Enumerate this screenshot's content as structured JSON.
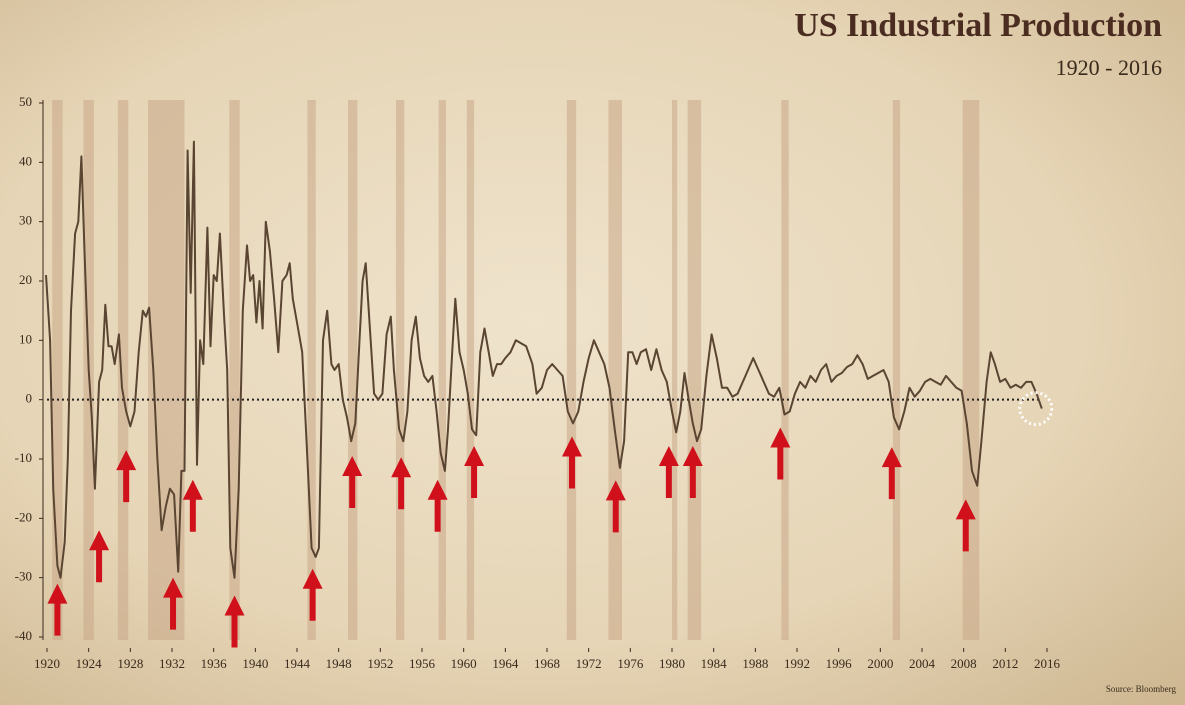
{
  "chart_data": {
    "type": "line",
    "title": "US Industrial Production",
    "subtitle": "1920 - 2016",
    "source": "Source: Bloomberg",
    "color": "#5a4532",
    "xlim": [
      1920,
      2016
    ],
    "xticks": [
      1920,
      1924,
      1928,
      1932,
      1936,
      1940,
      1944,
      1948,
      1952,
      1956,
      1960,
      1964,
      1968,
      1972,
      1976,
      1980,
      1984,
      1988,
      1992,
      1996,
      2000,
      2004,
      2008,
      2012,
      2016
    ],
    "ylim": [
      -40,
      50
    ],
    "yticks": [
      -40,
      -30,
      -20,
      -10,
      0,
      10,
      20,
      30,
      40,
      50
    ],
    "recessions": [
      [
        1920.5,
        1921.5
      ],
      [
        1923.5,
        1924.5
      ],
      [
        1926.8,
        1927.8
      ],
      [
        1929.7,
        1933.2
      ],
      [
        1937.5,
        1938.5
      ],
      [
        1945,
        1945.8
      ],
      [
        1948.9,
        1949.8
      ],
      [
        1953.5,
        1954.3
      ],
      [
        1957.6,
        1958.3
      ],
      [
        1960.3,
        1961
      ],
      [
        1969.9,
        1970.8
      ],
      [
        1973.9,
        1975.2
      ],
      [
        1980,
        1980.5
      ],
      [
        1981.5,
        1982.8
      ],
      [
        1990.5,
        1991.2
      ],
      [
        2001.2,
        2001.9
      ],
      [
        2007.9,
        2009.5
      ]
    ],
    "recession_color": "#c9a888",
    "arrow_color": "#d0101a",
    "arrows": [
      {
        "x": 1921,
        "y": -31
      },
      {
        "x": 1925,
        "y": -22
      },
      {
        "x": 1927.6,
        "y": -8.5
      },
      {
        "x": 1932.1,
        "y": -30
      },
      {
        "x": 1934,
        "y": -13.5
      },
      {
        "x": 1938,
        "y": -33
      },
      {
        "x": 1945.5,
        "y": -28.5
      },
      {
        "x": 1949.3,
        "y": -9.5
      },
      {
        "x": 1954,
        "y": -9.7
      },
      {
        "x": 1957.5,
        "y": -13.5
      },
      {
        "x": 1961,
        "y": -7.8
      },
      {
        "x": 1970.4,
        "y": -6.2
      },
      {
        "x": 1974.6,
        "y": -13.6
      },
      {
        "x": 1979.7,
        "y": -7.8
      },
      {
        "x": 1982,
        "y": -7.8
      },
      {
        "x": 1990.4,
        "y": -4.7
      },
      {
        "x": 2001.1,
        "y": -8
      },
      {
        "x": 2008.2,
        "y": -16.8
      }
    ],
    "highlight": {
      "x": 2015.5,
      "y": -1.5
    },
    "x": [
      1919.9,
      1920.3,
      1920.6,
      1921.0,
      1921.3,
      1921.7,
      1922.0,
      1922.3,
      1922.7,
      1923.0,
      1923.3,
      1923.6,
      1924.0,
      1924.3,
      1924.6,
      1925.0,
      1925.3,
      1925.6,
      1925.9,
      1926.2,
      1926.5,
      1926.9,
      1927.2,
      1927.6,
      1928.0,
      1928.4,
      1928.8,
      1929.2,
      1929.5,
      1929.8,
      1930.2,
      1930.6,
      1931.0,
      1931.4,
      1931.8,
      1932.2,
      1932.6,
      1932.9,
      1933.2,
      1933.5,
      1933.8,
      1934.1,
      1934.4,
      1934.7,
      1935.0,
      1935.4,
      1935.7,
      1936.0,
      1936.3,
      1936.6,
      1937.0,
      1937.3,
      1937.6,
      1938.0,
      1938.4,
      1938.8,
      1939.2,
      1939.5,
      1939.8,
      1940.1,
      1940.4,
      1940.7,
      1941.0,
      1941.4,
      1941.8,
      1942.2,
      1942.6,
      1943.0,
      1943.3,
      1943.6,
      1944.0,
      1944.5,
      1945.0,
      1945.4,
      1945.8,
      1946.1,
      1946.5,
      1946.9,
      1947.3,
      1947.6,
      1948.0,
      1948.4,
      1948.8,
      1949.2,
      1949.6,
      1950.0,
      1950.3,
      1950.6,
      1951.0,
      1951.4,
      1951.8,
      1952.2,
      1952.6,
      1953.0,
      1953.3,
      1953.8,
      1954.2,
      1954.6,
      1955.0,
      1955.4,
      1955.8,
      1956.2,
      1956.6,
      1957.0,
      1957.4,
      1957.8,
      1958.2,
      1958.5,
      1958.9,
      1959.2,
      1959.6,
      1960.0,
      1960.4,
      1960.8,
      1961.2,
      1961.6,
      1962.0,
      1962.4,
      1962.8,
      1963.2,
      1963.6,
      1964.0,
      1964.5,
      1965.0,
      1965.5,
      1966.0,
      1966.6,
      1967.0,
      1967.5,
      1968.0,
      1968.5,
      1969.0,
      1969.5,
      1970.0,
      1970.5,
      1971.0,
      1971.5,
      1972.0,
      1972.5,
      1973.0,
      1973.5,
      1974.0,
      1974.5,
      1975.0,
      1975.4,
      1975.8,
      1976.2,
      1976.6,
      1977.0,
      1977.5,
      1978.0,
      1978.5,
      1979.0,
      1979.5,
      1980.0,
      1980.4,
      1980.8,
      1981.2,
      1981.6,
      1982.0,
      1982.4,
      1982.8,
      1983.3,
      1983.8,
      1984.3,
      1984.8,
      1985.3,
      1985.8,
      1986.3,
      1986.8,
      1987.3,
      1987.8,
      1988.3,
      1988.8,
      1989.3,
      1989.8,
      1990.3,
      1990.8,
      1991.3,
      1991.8,
      1992.3,
      1992.8,
      1993.3,
      1993.8,
      1994.3,
      1994.8,
      1995.3,
      1995.8,
      1996.3,
      1996.8,
      1997.3,
      1997.8,
      1998.3,
      1998.8,
      1999.3,
      1999.8,
      2000.3,
      2000.8,
      2001.3,
      2001.8,
      2002.3,
      2002.8,
      2003.3,
      2003.8,
      2004.3,
      2004.8,
      2005.3,
      2005.8,
      2006.3,
      2006.8,
      2007.3,
      2007.8,
      2008.3,
      2008.8,
      2009.3,
      2009.7,
      2010.2,
      2010.6,
      2011.0,
      2011.5,
      2012.0,
      2012.5,
      2013.0,
      2013.5,
      2014.0,
      2014.5,
      2015.0,
      2015.5
    ],
    "values": [
      21,
      10,
      -15,
      -28,
      -30,
      -24,
      -10,
      15,
      28,
      30,
      41,
      25,
      5,
      -3,
      -15,
      3,
      5,
      16,
      9,
      9,
      6,
      11,
      2,
      -2,
      -4.5,
      -2,
      8,
      15,
      14,
      15.5,
      5,
      -10,
      -22,
      -18,
      -15,
      -16,
      -29,
      -12,
      -12,
      42,
      18,
      43.5,
      -11,
      10,
      6,
      29,
      9,
      21,
      20,
      28,
      14,
      5,
      -25,
      -30,
      -15,
      15,
      26,
      20,
      21,
      13,
      20,
      12,
      30,
      25,
      17,
      8,
      20,
      21,
      23,
      17,
      13,
      8,
      -10,
      -25,
      -26.5,
      -25,
      10,
      15,
      6,
      5,
      6,
      0,
      -3,
      -7,
      -4,
      10,
      20,
      23,
      12,
      1,
      0,
      1,
      11,
      14,
      5,
      -5,
      -7,
      -2,
      10,
      14,
      7,
      4,
      3,
      4,
      -2,
      -9,
      -12,
      -5,
      8,
      17,
      8,
      5,
      1,
      -5,
      -6,
      8,
      12,
      8,
      4,
      6,
      6,
      7,
      8,
      10,
      9.5,
      9,
      6,
      1,
      2,
      5,
      6,
      5,
      4,
      -2,
      -4,
      -2,
      3,
      7,
      10,
      8,
      6,
      2,
      -5,
      -11.5,
      -7,
      8,
      8,
      6,
      8,
      8.5,
      5,
      8.5,
      5,
      3,
      -2,
      -5.5,
      -2,
      4.5,
      0,
      -4,
      -7,
      -5,
      4,
      11,
      7,
      2,
      2,
      0.5,
      1,
      3,
      5,
      7,
      5,
      3,
      1,
      0.5,
      2,
      -2.5,
      -2,
      1,
      3,
      2,
      4,
      3,
      5,
      6,
      3,
      4,
      4.5,
      5.5,
      6,
      7.5,
      6,
      3.5,
      4,
      4.5,
      5,
      3,
      -3,
      -5,
      -2,
      2,
      0.5,
      1.5,
      3,
      3.5,
      3,
      2.5,
      4,
      3,
      2,
      1.5,
      -4,
      -12,
      -14.5,
      -7,
      3,
      8,
      6,
      3,
      3.5,
      2,
      2.5,
      2,
      3,
      3,
      1,
      -1.5
    ]
  }
}
